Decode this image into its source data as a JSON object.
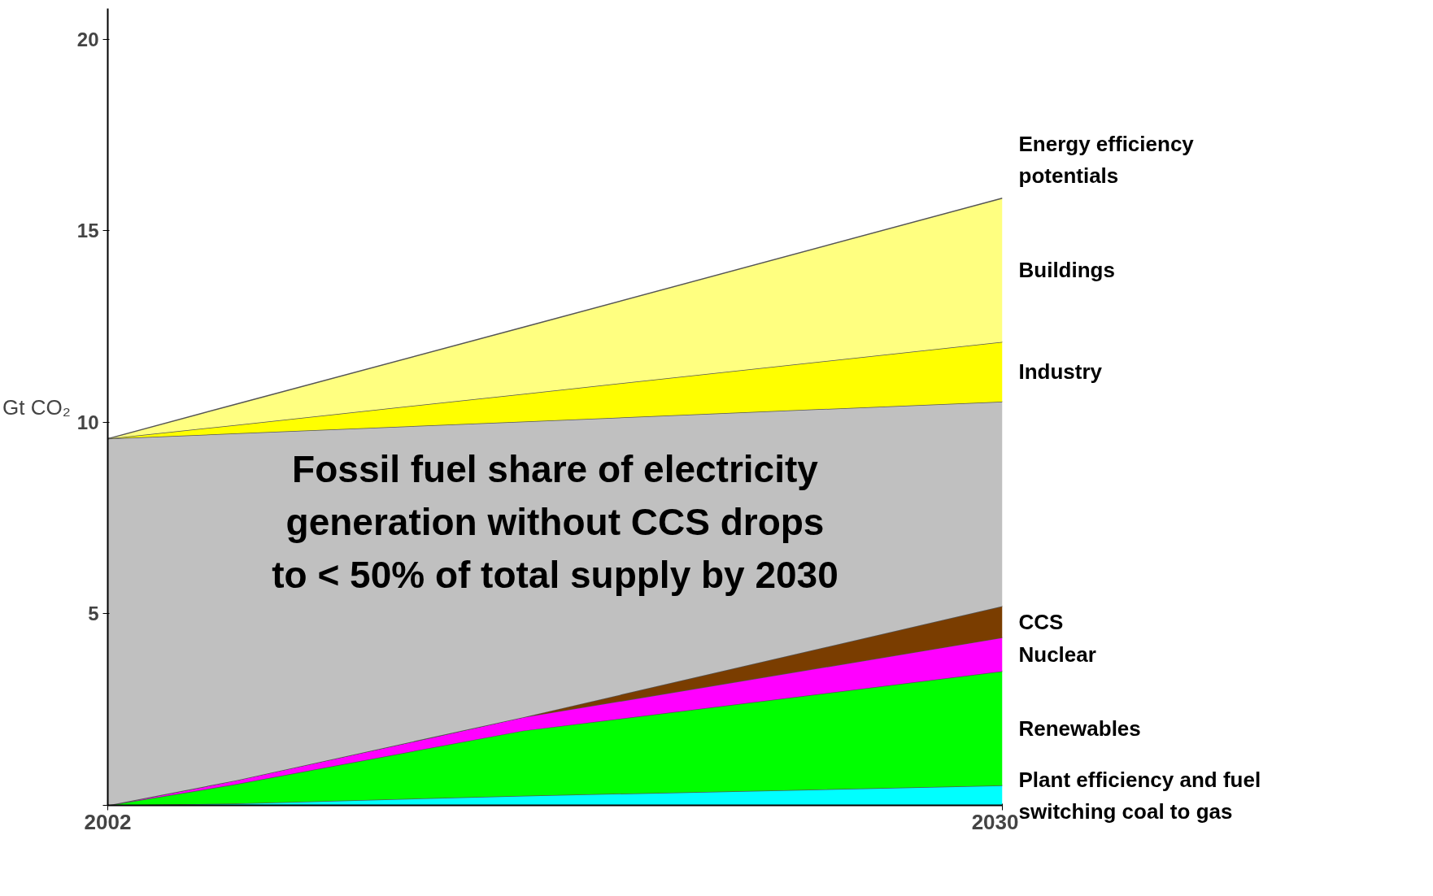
{
  "chart_data": {
    "type": "area",
    "stacked": true,
    "ylabel": "Gt CO₂",
    "x": [
      2002,
      2006,
      2015,
      2030
    ],
    "xlim": [
      2002,
      2030
    ],
    "xticks": [
      2002,
      2030
    ],
    "ylim": [
      0,
      20.8
    ],
    "yticks": [
      {
        "value": 0,
        "label": null
      },
      5,
      10,
      15,
      20
    ],
    "grid": false,
    "legend": false,
    "series": [
      {
        "name": "Plant efficiency and fuel\nswitching coal to gas",
        "color": "#00ffff",
        "values": [
          0,
          0.05,
          0.25,
          0.52
        ]
      },
      {
        "name": "Renewables",
        "color": "#00ff00",
        "values": [
          0,
          0.5,
          1.7,
          2.98
        ]
      },
      {
        "name": "Nuclear",
        "color": "#ff00ff",
        "values": [
          0,
          0.1,
          0.35,
          0.88
        ]
      },
      {
        "name": "CCS",
        "color": "#7a3d00",
        "values": [
          0,
          0,
          0,
          0.82
        ]
      },
      {
        "color": "#c0c0c0",
        "values": [
          9.57,
          9.06,
          7.72,
          5.34
        ]
      },
      {
        "name": "Industry",
        "color": "#ffff00",
        "values": [
          0,
          0.22,
          0.72,
          1.56
        ]
      },
      {
        "name": "Buildings",
        "color": "#ffff80",
        "values": [
          0,
          0.54,
          1.74,
          3.75
        ]
      }
    ],
    "annotations": [
      "Energy efficiency\npotentials",
      "Fossil fuel share of electricity\ngeneration without CCS drops\nto < 50% of total supply by 2030"
    ]
  }
}
